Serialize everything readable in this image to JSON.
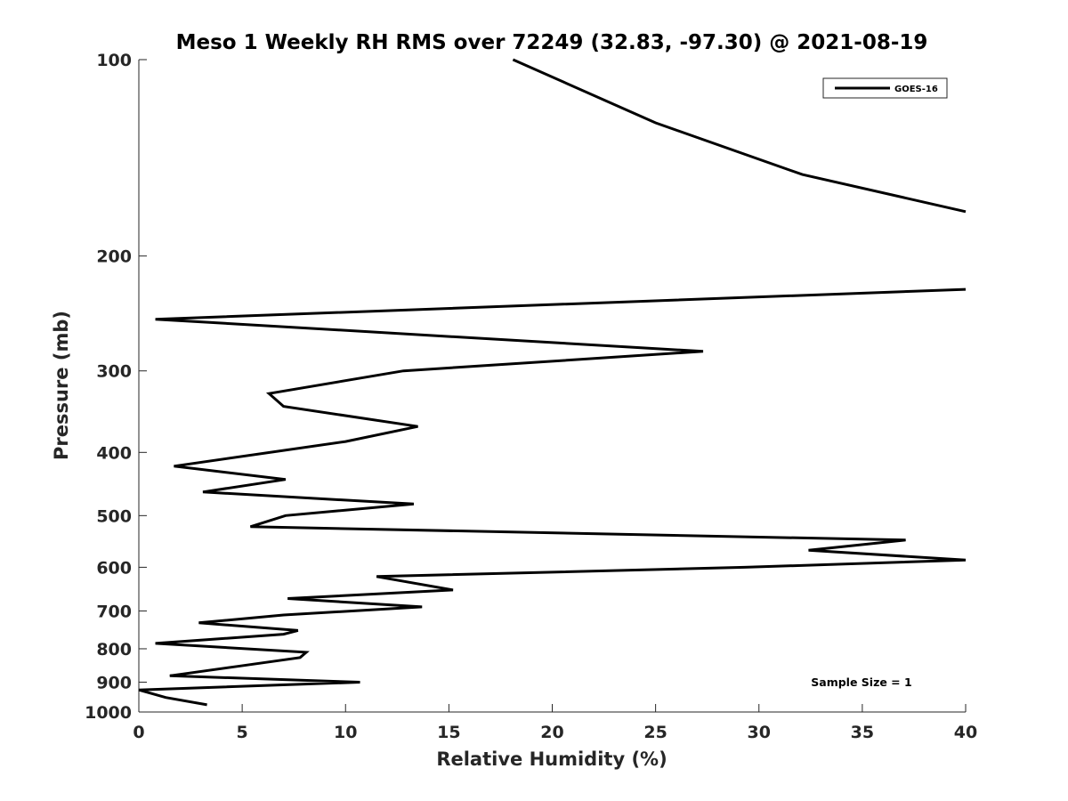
{
  "chart_data": {
    "type": "line",
    "title": "Meso 1 Weekly RH RMS over 72249 (32.83, -97.30) @ 2021-08-19",
    "xlabel": "Relative Humidity (%)",
    "ylabel": "Pressure (mb)",
    "xlim": [
      0,
      40
    ],
    "ylim": [
      100,
      1000
    ],
    "y_scale": "log",
    "y_reversed": true,
    "x_ticks": [
      "0",
      "5",
      "10",
      "15",
      "20",
      "25",
      "30",
      "35",
      "40"
    ],
    "y_ticks": [
      "100",
      "200",
      "300",
      "400",
      "500",
      "600",
      "700",
      "800",
      "900",
      "1000"
    ],
    "grid": false,
    "legend": {
      "placement": "top-right",
      "entries": [
        "GOES-16"
      ]
    },
    "annotation": "Sample Size = 1",
    "series": [
      {
        "name": "GOES-16",
        "segments": [
          {
            "x": [
              18.1,
              25.0,
              32.1,
              40.0
            ],
            "y": [
              100,
              125,
              150,
              171
            ]
          },
          {
            "x": [
              40.0,
              0.8,
              27.3,
              12.8,
              6.3,
              7.0,
              13.5,
              10.0,
              1.7,
              7.1,
              3.1,
              13.3,
              7.1,
              5.4,
              37.1,
              32.4,
              40.0,
              29.3,
              11.5,
              15.2,
              7.2,
              13.7,
              7.0,
              2.9,
              7.7,
              7.0,
              0.8,
              8.1,
              7.8,
              4.9,
              1.5,
              10.7,
              0.0,
              1.3,
              3.3
            ],
            "y": [
              225,
              250,
              280,
              300,
              325,
              340,
              365,
              385,
              420,
              440,
              460,
              480,
              500,
              520,
              545,
              565,
              585,
              600,
              620,
              650,
              670,
              690,
              710,
              730,
              750,
              760,
              785,
              810,
              825,
              850,
              880,
              900,
              925,
              950,
              975
            ]
          }
        ]
      }
    ]
  }
}
